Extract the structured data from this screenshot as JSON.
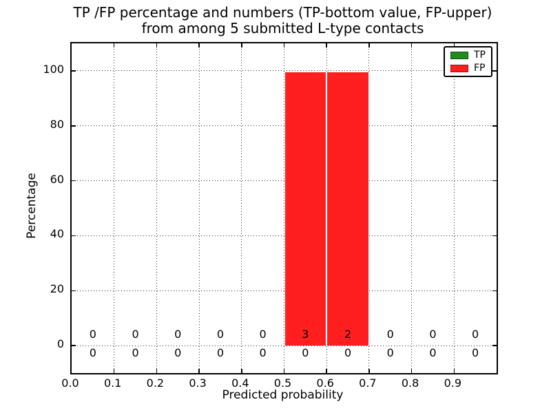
{
  "figure": {
    "title_line1": "TP /FP percentage and numbers (TP-bottom value, FP-upper)",
    "title_line2": "from among 5 submitted L-type contacts",
    "xlabel": "Predicted probability",
    "ylabel": "Percentage",
    "background_color": "#ffffff",
    "text_color": "#000000"
  },
  "legend": {
    "position": "upper right",
    "items": [
      {
        "label": "TP",
        "color": "#1e8c1e"
      },
      {
        "label": "FP",
        "color": "#ff1f1f"
      }
    ]
  },
  "chart_data": {
    "type": "bar",
    "stacked": true,
    "title": "TP /FP percentage and numbers (TP-bottom value, FP-upper)\nfrom among 5 submitted L-type contacts",
    "xlabel": "Predicted probability",
    "ylabel": "Percentage",
    "bin_edges": [
      0.0,
      0.1,
      0.2,
      0.3,
      0.4,
      0.5,
      0.6,
      0.7,
      0.8,
      0.9,
      1.0
    ],
    "categories": [
      "0.0-0.1",
      "0.1-0.2",
      "0.2-0.3",
      "0.3-0.4",
      "0.4-0.5",
      "0.5-0.6",
      "0.6-0.7",
      "0.7-0.8",
      "0.8-0.9",
      "0.9-1.0"
    ],
    "series": [
      {
        "name": "TP",
        "color": "#1e8c1e",
        "percentages": [
          0,
          0,
          0,
          0,
          0,
          0,
          0,
          0,
          0,
          0
        ],
        "counts": [
          0,
          0,
          0,
          0,
          0,
          0,
          0,
          0,
          0,
          0
        ]
      },
      {
        "name": "FP",
        "color": "#ff1f1f",
        "percentages": [
          0,
          0,
          0,
          0,
          0,
          99.5,
          99.5,
          0,
          0,
          0
        ],
        "counts": [
          0,
          0,
          0,
          0,
          0,
          3,
          2,
          0,
          0,
          0
        ]
      }
    ],
    "count_labels": {
      "upper_row_series": "FP",
      "lower_row_series": "TP"
    },
    "xticks": [
      0.0,
      0.1,
      0.2,
      0.3,
      0.4,
      0.5,
      0.6,
      0.7,
      0.8,
      0.9
    ],
    "xtick_labels": [
      "0.0",
      "0.1",
      "0.2",
      "0.3",
      "0.4",
      "0.5",
      "0.6",
      "0.7",
      "0.8",
      "0.9"
    ],
    "yticks": [
      0,
      20,
      40,
      60,
      80,
      100
    ],
    "ytick_labels": [
      "0",
      "20",
      "40",
      "60",
      "80",
      "100"
    ],
    "xlim": [
      0.0,
      1.0
    ],
    "ylim": [
      -10,
      110
    ],
    "grid": true,
    "grid_style": "dotted",
    "tick_direction": "in",
    "legend_position": "upper right"
  }
}
